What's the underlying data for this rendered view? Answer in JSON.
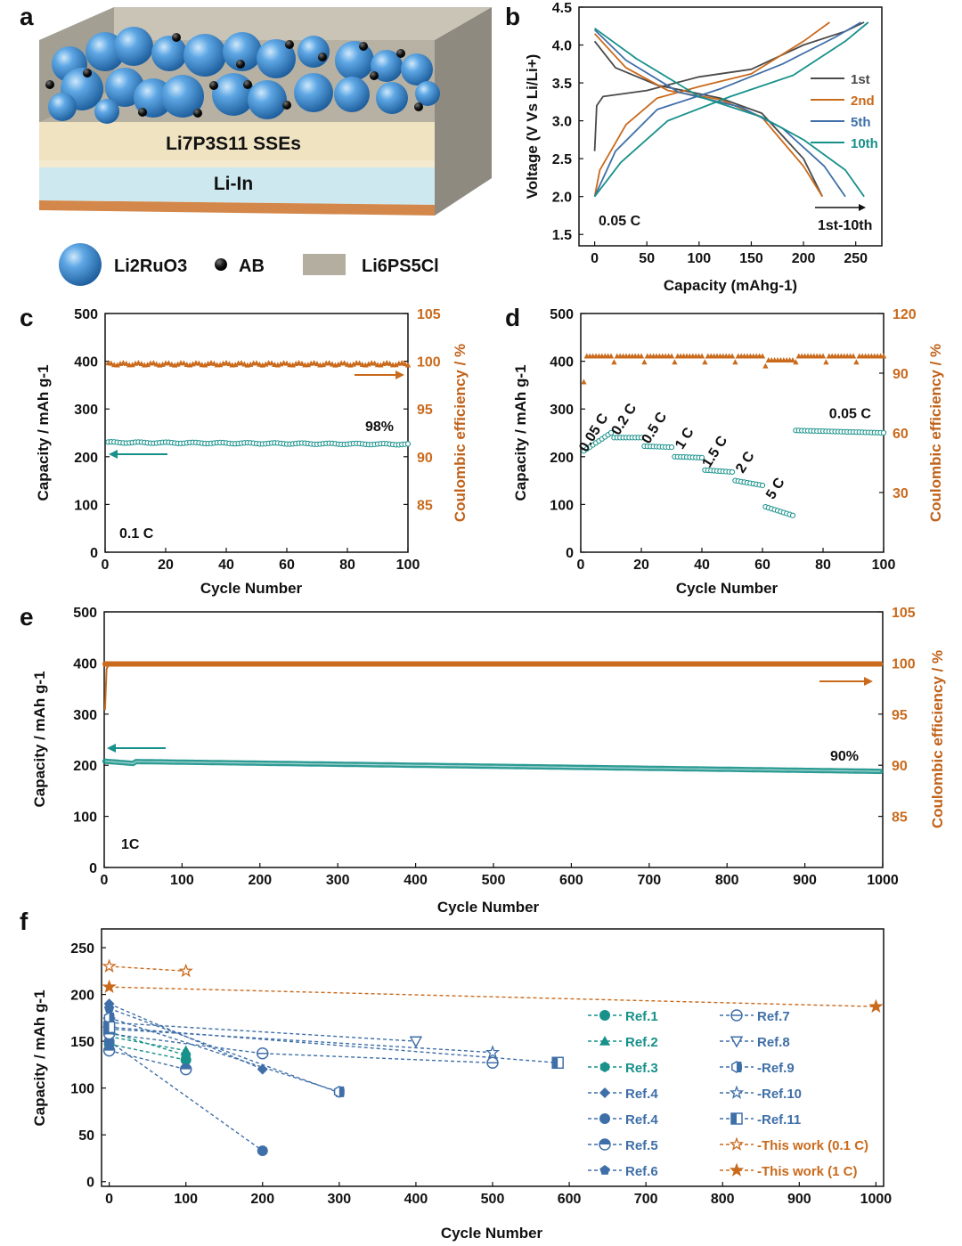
{
  "colors": {
    "teal": "#17918a",
    "orange": "#c96a1c",
    "blue": "#3f6fa8",
    "gray": "#4a4a4a",
    "cell_top": "#b8b2a4",
    "electrolyte": "#efe3c2",
    "lithium": "#cde9ef",
    "copper": "#d4874a",
    "sphere": "#3e8ed4"
  },
  "panel_a": {
    "label": "a",
    "layer_sse": "Li7P3S11 SSEs",
    "layer_anode": "Li-In",
    "legend": [
      {
        "name": "Li2RuO3",
        "icon": "blue-sphere-icon"
      },
      {
        "name": "AB",
        "icon": "black-dot-icon"
      },
      {
        "name": "Li6PS5Cl",
        "icon": "gray-square-icon"
      }
    ]
  },
  "chart_data": [
    {
      "panel": "b",
      "type": "line",
      "xlabel": "Capacity (mAhg-1)",
      "ylabel": "Voltage (V Vs Li/Li+)",
      "xlim": [
        -15,
        275
      ],
      "ylim": [
        1.35,
        4.5
      ],
      "xticks": [
        "0",
        "50",
        "100",
        "150",
        "200",
        "250"
      ],
      "yticks": [
        "1.5",
        "2.0",
        "2.5",
        "3.0",
        "3.5",
        "4.0",
        "4.5"
      ],
      "annotations": [
        "0.05 C",
        "1st-10th"
      ],
      "series": [
        {
          "name": "1st",
          "color": "gray",
          "charge": [
            [
              0,
              2.6
            ],
            [
              2,
              3.2
            ],
            [
              8,
              3.32
            ],
            [
              50,
              3.4
            ],
            [
              100,
              3.58
            ],
            [
              150,
              3.68
            ],
            [
              200,
              4.0
            ],
            [
              240,
              4.18
            ],
            [
              258,
              4.3
            ]
          ],
          "discharge": [
            [
              0,
              4.05
            ],
            [
              20,
              3.7
            ],
            [
              60,
              3.47
            ],
            [
              120,
              3.3
            ],
            [
              160,
              3.1
            ],
            [
              200,
              2.5
            ],
            [
              218,
              2.0
            ]
          ]
        },
        {
          "name": "2nd",
          "color": "orange",
          "charge": [
            [
              0,
              2.0
            ],
            [
              5,
              2.35
            ],
            [
              30,
              2.95
            ],
            [
              60,
              3.3
            ],
            [
              100,
              3.45
            ],
            [
              150,
              3.62
            ],
            [
              200,
              4.05
            ],
            [
              225,
              4.3
            ]
          ],
          "discharge": [
            [
              0,
              4.15
            ],
            [
              30,
              3.7
            ],
            [
              70,
              3.4
            ],
            [
              120,
              3.28
            ],
            [
              160,
              3.05
            ],
            [
              200,
              2.4
            ],
            [
              218,
              2.0
            ]
          ]
        },
        {
          "name": "5th",
          "color": "blue",
          "charge": [
            [
              0,
              2.0
            ],
            [
              20,
              2.6
            ],
            [
              60,
              3.15
            ],
            [
              120,
              3.42
            ],
            [
              180,
              3.75
            ],
            [
              230,
              4.1
            ],
            [
              255,
              4.3
            ]
          ],
          "discharge": [
            [
              0,
              4.2
            ],
            [
              30,
              3.8
            ],
            [
              80,
              3.38
            ],
            [
              140,
              3.18
            ],
            [
              180,
              2.9
            ],
            [
              220,
              2.4
            ],
            [
              240,
              2.0
            ]
          ]
        },
        {
          "name": "10th",
          "color": "teal",
          "charge": [
            [
              0,
              2.0
            ],
            [
              25,
              2.45
            ],
            [
              70,
              3.0
            ],
            [
              130,
              3.32
            ],
            [
              190,
              3.6
            ],
            [
              240,
              4.05
            ],
            [
              262,
              4.3
            ]
          ],
          "discharge": [
            [
              0,
              4.22
            ],
            [
              40,
              3.82
            ],
            [
              100,
              3.32
            ],
            [
              160,
              3.05
            ],
            [
              200,
              2.75
            ],
            [
              240,
              2.35
            ],
            [
              258,
              2.0
            ]
          ]
        }
      ]
    },
    {
      "panel": "c",
      "type": "scatter",
      "xlabel": "Cycle Number",
      "ylabel": "Capacity / mAh g-1",
      "y2label": "Coulombic efficiency / %",
      "xlim": [
        0,
        100
      ],
      "ylim": [
        0,
        500
      ],
      "y2lim": [
        80,
        105
      ],
      "xticks": [
        "0",
        "20",
        "40",
        "60",
        "80",
        "100"
      ],
      "yticks": [
        "0",
        "100",
        "200",
        "300",
        "400",
        "500"
      ],
      "y2ticks": [
        "85",
        "90",
        "95",
        "100",
        "105"
      ],
      "capacity_start": 230,
      "capacity_end": 226,
      "efficiency": 99.7,
      "annotations": [
        "98%",
        "0.1 C"
      ]
    },
    {
      "panel": "d",
      "type": "scatter",
      "xlabel": "Cycle Number",
      "ylabel": "Capacity / mAh g-1",
      "y2label": "Coulombic efficiency / %",
      "xlim": [
        0,
        100
      ],
      "ylim": [
        0,
        500
      ],
      "y2lim": [
        0,
        120
      ],
      "xticks": [
        "0",
        "20",
        "40",
        "60",
        "80",
        "100"
      ],
      "yticks": [
        "0",
        "100",
        "200",
        "300",
        "400",
        "500"
      ],
      "y2ticks": [
        "30",
        "60",
        "90",
        "120"
      ],
      "rate_steps": [
        {
          "label": "0.05 C",
          "start": 1,
          "end": 10,
          "cap_start": 212,
          "cap_end": 250
        },
        {
          "label": "0.2 C",
          "start": 11,
          "end": 20,
          "cap_start": 240,
          "cap_end": 240
        },
        {
          "label": "0.5 C",
          "start": 21,
          "end": 30,
          "cap_start": 222,
          "cap_end": 220
        },
        {
          "label": "1 C",
          "start": 31,
          "end": 40,
          "cap_start": 200,
          "cap_end": 198
        },
        {
          "label": "1.5 C",
          "start": 41,
          "end": 50,
          "cap_start": 172,
          "cap_end": 168
        },
        {
          "label": "2 C",
          "start": 51,
          "end": 60,
          "cap_start": 150,
          "cap_end": 140
        },
        {
          "label": "5 C",
          "start": 61,
          "end": 70,
          "cap_start": 95,
          "cap_end": 77
        },
        {
          "label": "0.05 C",
          "start": 71,
          "end": 100,
          "cap_start": 255,
          "cap_end": 250
        }
      ],
      "efficiency": 98.5
    },
    {
      "panel": "e",
      "type": "scatter",
      "xlabel": "Cycle Number",
      "ylabel": "Capacity / mAh g-1",
      "y2label": "Coulombic efficiency / %",
      "xlim": [
        0,
        1000
      ],
      "ylim": [
        0,
        500
      ],
      "y2lim": [
        80,
        105
      ],
      "xticks": [
        "0",
        "100",
        "200",
        "300",
        "400",
        "500",
        "600",
        "700",
        "800",
        "900",
        "1000"
      ],
      "yticks": [
        "0",
        "100",
        "200",
        "300",
        "400",
        "500"
      ],
      "y2ticks": [
        "85",
        "90",
        "95",
        "100",
        "105"
      ],
      "capacity_start": 208,
      "capacity_end": 188,
      "efficiency": 99.9,
      "annotations": [
        "90%",
        "1C"
      ]
    },
    {
      "panel": "f",
      "type": "line",
      "xlabel": "Cycle Number",
      "ylabel": "Capacity / mAh g-1",
      "xlim": [
        -10,
        1010
      ],
      "ylim": [
        -5,
        270
      ],
      "xticks": [
        "0",
        "100",
        "200",
        "300",
        "400",
        "500",
        "600",
        "700",
        "800",
        "900",
        "1000"
      ],
      "yticks": [
        "0",
        "50",
        "100",
        "150",
        "200",
        "250"
      ],
      "series": [
        {
          "name": "Ref.1",
          "color": "teal",
          "marker": "circle",
          "points": [
            [
              0,
              147
            ],
            [
              100,
              130
            ]
          ]
        },
        {
          "name": "Ref.2",
          "color": "teal",
          "marker": "triangle",
          "points": [
            [
              0,
              155
            ],
            [
              100,
              140
            ]
          ]
        },
        {
          "name": "Ref.3",
          "color": "teal",
          "marker": "hexagon",
          "points": [
            [
              0,
              160
            ],
            [
              100,
              135
            ]
          ]
        },
        {
          "name": "Ref.4",
          "color": "blue",
          "marker": "diamond",
          "points": [
            [
              0,
              190
            ],
            [
              200,
              120
            ]
          ]
        },
        {
          "name": "Ref.4",
          "color": "blue",
          "marker": "circle",
          "points": [
            [
              0,
              150
            ],
            [
              200,
              33
            ]
          ]
        },
        {
          "name": "Ref.5",
          "color": "blue",
          "marker": "circle-half",
          "points": [
            [
              0,
              140
            ],
            [
              100,
              120
            ]
          ]
        },
        {
          "name": "Ref.6",
          "color": "blue",
          "marker": "pentagon",
          "points": [
            [
              0,
              185
            ],
            [
              300,
              95
            ]
          ]
        },
        {
          "name": "Ref.7",
          "color": "blue",
          "marker": "circle-h",
          "points": [
            [
              0,
              158
            ],
            [
              200,
              137
            ],
            [
              500,
              127
            ]
          ]
        },
        {
          "name": "Ref.8",
          "color": "blue",
          "marker": "triangle-down",
          "points": [
            [
              0,
              170
            ],
            [
              400,
              150
            ]
          ]
        },
        {
          "name": "-Ref.9",
          "color": "blue",
          "marker": "hexagon-half",
          "points": [
            [
              0,
              175
            ],
            [
              300,
              96
            ]
          ]
        },
        {
          "name": "-Ref.10",
          "color": "blue",
          "marker": "star-open",
          "points": [
            [
              0,
              163
            ],
            [
              500,
              138
            ]
          ]
        },
        {
          "name": "-Ref.11",
          "color": "blue",
          "marker": "square-half",
          "points": [
            [
              0,
              165
            ],
            [
              585,
              127
            ]
          ]
        },
        {
          "name": "-This work (0.1 C)",
          "color": "orange",
          "marker": "star-open",
          "points": [
            [
              0,
              230
            ],
            [
              100,
              225
            ]
          ]
        },
        {
          "name": "-This work (1 C)",
          "color": "orange",
          "marker": "star",
          "points": [
            [
              0,
              208
            ],
            [
              1000,
              187
            ]
          ]
        }
      ]
    }
  ]
}
